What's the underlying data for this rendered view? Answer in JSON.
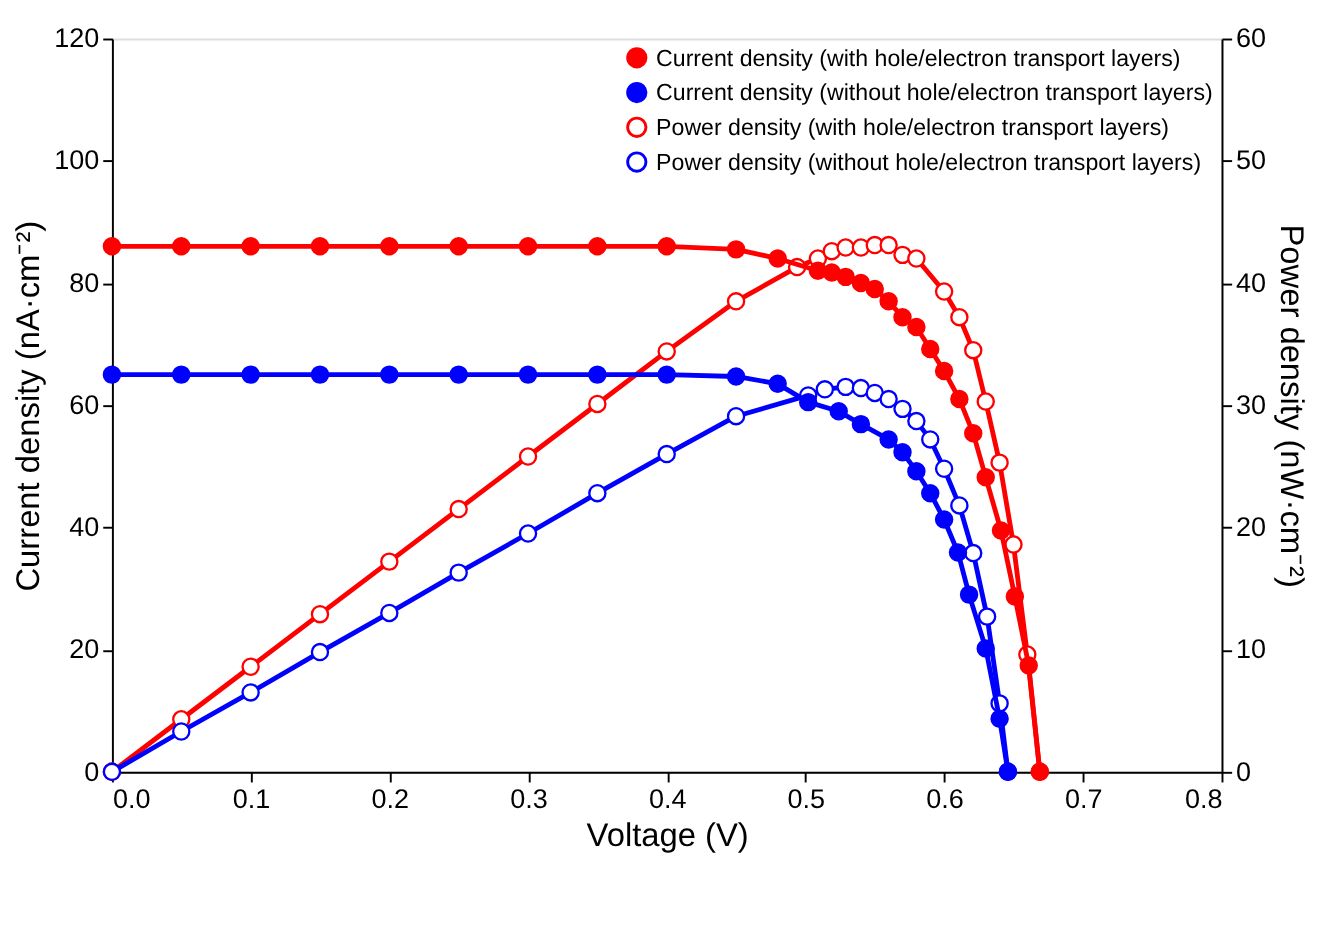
{
  "chart_data": {
    "type": "line",
    "xlabel": "Voltage (V)",
    "ylabel": "Current density (nA·cm⁻²)",
    "y2label": "Power density (nW·cm⁻²)",
    "xlim": [
      0,
      0.8
    ],
    "xticks": [
      {
        "value": 0,
        "label": "0.0"
      },
      0.1,
      0.2,
      0.3,
      0.4,
      0.5,
      0.6,
      0.7,
      0.8
    ],
    "ylim": [
      0,
      120
    ],
    "yticks": [
      0,
      20,
      40,
      60,
      80,
      100,
      120
    ],
    "y2lim": [
      0,
      60
    ],
    "y2ticks": [
      0,
      10,
      20,
      30,
      40,
      50,
      60
    ],
    "grid": false,
    "legend": "top right",
    "line_style": "solid",
    "series": [
      {
        "name": "Current density (with hole/electron transport layers)",
        "color": "#ff0000",
        "marker": "circle",
        "x": [
          0,
          0.05,
          0.1,
          0.15,
          0.2,
          0.25,
          0.3,
          0.35,
          0.4,
          0.45,
          0.48,
          0.509,
          0.519,
          0.529,
          0.54,
          0.55,
          0.56,
          0.57,
          0.58,
          0.59,
          0.6,
          0.611,
          0.621,
          0.63,
          0.641,
          0.651,
          0.661,
          0.669
        ],
        "values": [
          86,
          86,
          86,
          86,
          86,
          86,
          86,
          86,
          86,
          85.5,
          84,
          82,
          81.7,
          81,
          80,
          79,
          77,
          74.4,
          72.8,
          69.2,
          65.6,
          61,
          55.4,
          48.2,
          39.5,
          28.7,
          17.4,
          0
        ]
      },
      {
        "name": "Current density (without hole/electron transport layers)",
        "color": "#0000ff",
        "marker": "circle",
        "x": [
          0,
          0.05,
          0.1,
          0.15,
          0.2,
          0.25,
          0.3,
          0.35,
          0.4,
          0.45,
          0.48,
          0.502,
          0.524,
          0.54,
          0.56,
          0.57,
          0.58,
          0.59,
          0.6,
          0.61,
          0.618,
          0.63,
          0.64,
          0.646
        ],
        "values": [
          65,
          65,
          65,
          65,
          65,
          65,
          65,
          65,
          65,
          64.7,
          63.5,
          60.5,
          59,
          56.9,
          54.4,
          52.3,
          49.2,
          45.6,
          41.3,
          35.9,
          29,
          20.2,
          8.7,
          0
        ]
      },
      {
        "name": "Power density (with hole/electron transport layers)",
        "color": "#ff0000",
        "marker": "circle",
        "axis": "y2",
        "x": [
          0,
          0.05,
          0.1,
          0.15,
          0.2,
          0.25,
          0.3,
          0.35,
          0.4,
          0.45,
          0.494,
          0.509,
          0.519,
          0.529,
          0.54,
          0.55,
          0.56,
          0.57,
          0.58,
          0.6,
          0.611,
          0.621,
          0.63,
          0.64,
          0.65,
          0.66,
          0.669
        ],
        "values": [
          0,
          4.3,
          8.6,
          12.9,
          17.2,
          21.5,
          25.8,
          30.1,
          34.4,
          38.5,
          41.3,
          42,
          42.6,
          42.9,
          42.9,
          43.1,
          43.1,
          42.3,
          42,
          39.3,
          37.2,
          34.5,
          30.3,
          25.3,
          18.6,
          9.6,
          0
        ]
      },
      {
        "name": "Power density (without hole/electron transport layers)",
        "color": "#0000ff",
        "marker": "circle",
        "axis": "y2",
        "x": [
          0,
          0.05,
          0.1,
          0.15,
          0.2,
          0.25,
          0.3,
          0.35,
          0.4,
          0.45,
          0.502,
          0.514,
          0.529,
          0.54,
          0.55,
          0.56,
          0.57,
          0.58,
          0.59,
          0.6,
          0.611,
          0.621,
          0.631,
          0.64,
          0.646
        ],
        "values": [
          0,
          3.3,
          6.5,
          9.8,
          13,
          16.3,
          19.5,
          22.8,
          26,
          29.1,
          30.8,
          31.3,
          31.5,
          31.4,
          31,
          30.5,
          29.7,
          28.7,
          27.2,
          24.8,
          21.8,
          17.9,
          12.7,
          5.6,
          0
        ]
      }
    ]
  }
}
